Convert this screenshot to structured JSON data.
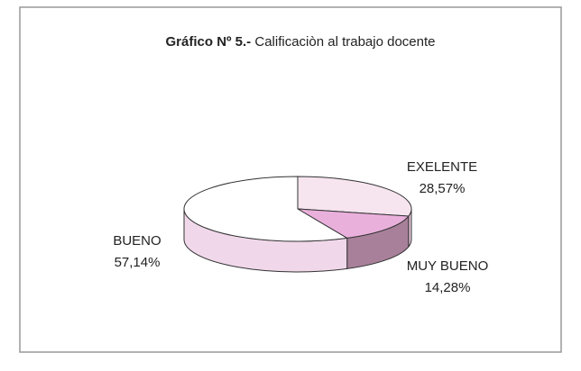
{
  "chart_data": {
    "type": "pie",
    "title_prefix": "Gráfico Nº 5.-",
    "title": "Calificaciòn al trabajo docente",
    "categories": [
      "EXELENTE",
      "MUY BUENO",
      "BUENO"
    ],
    "values": [
      28.57,
      14.28,
      57.14
    ],
    "value_labels": [
      "28,57%",
      "14,28%",
      "57,14%"
    ],
    "colors": [
      "#f6e4ef",
      "#eab0dc",
      "#ffffff"
    ],
    "side_colors": [
      "#e8c8dc",
      "#a8809a",
      "#f0d8ea"
    ]
  }
}
